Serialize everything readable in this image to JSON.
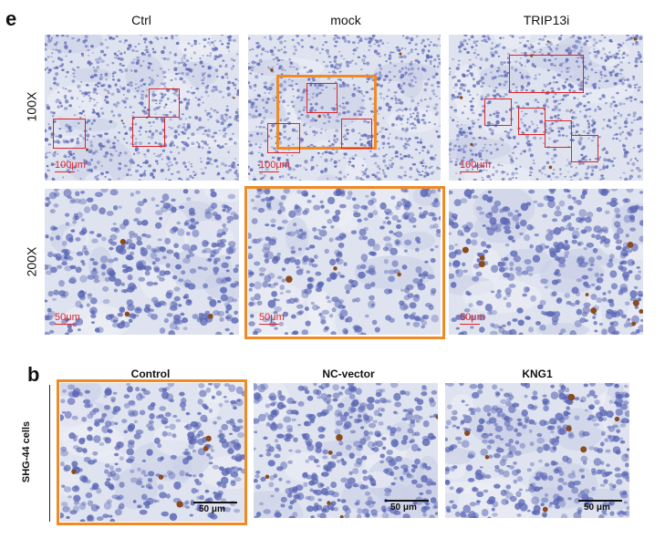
{
  "panel_e": {
    "letter": "e",
    "columns": [
      "Ctrl",
      "mock",
      "TRIP13i"
    ],
    "rows": [
      "100X",
      "200X"
    ],
    "scalebar_100x": "100μm",
    "scalebar_200x": "50μm"
  },
  "panel_b": {
    "letter": "b",
    "columns": [
      "Control",
      "NC-vector",
      "KNG1"
    ],
    "row_label": "SHG-44 cells",
    "scalebar": "50 μm"
  },
  "colors": {
    "tissue_bg": "#dfe3ef",
    "nuclei": "#5a66b4",
    "dab_stain": "#8a4a1e",
    "roi_red": "#e0242a",
    "highlight_orange": "#f08a24"
  }
}
